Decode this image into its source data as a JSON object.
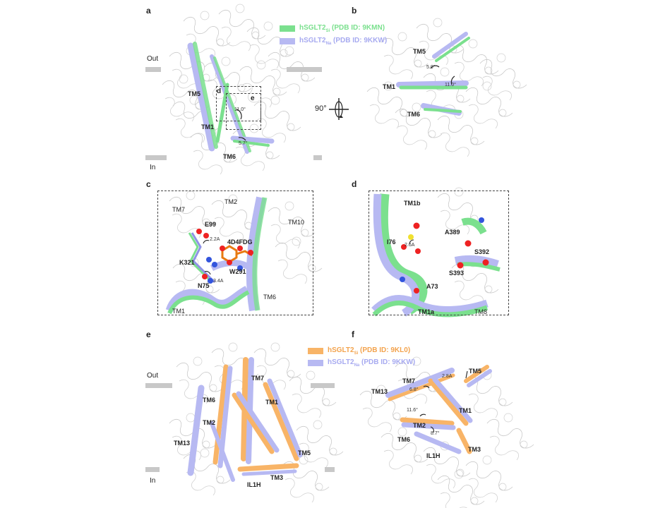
{
  "panels": {
    "a": {
      "letter": "a",
      "out_label": "Out",
      "in_label": "In",
      "legend": [
        {
          "prefix": "hSGLT2",
          "sub": "Si",
          "suffix": " (PDB ID: 9KMN)",
          "color": "#7be08e"
        },
        {
          "prefix": "hSGLT2",
          "sub": "Na",
          "suffix": " (PDB ID: 9KKW)",
          "color": "#b7b9f2"
        }
      ],
      "labels": [
        "TM5",
        "TM1",
        "TM6"
      ],
      "inset_labels": [
        "d",
        "e"
      ],
      "angles": [
        "11.0°",
        "5.7°"
      ]
    },
    "b": {
      "letter": "b",
      "labels": [
        "TM5",
        "TM1",
        "TM6"
      ],
      "angles": [
        "5.0°",
        "11.0°"
      ]
    },
    "rotation": "90°",
    "c": {
      "letter": "c",
      "labels": [
        "TM7",
        "TM2",
        "TM10",
        "E99",
        "4D4FDG",
        "K321",
        "W291",
        "N75",
        "TM6",
        "TM1"
      ],
      "distances": [
        "2.2A",
        "3.4A"
      ]
    },
    "d": {
      "letter": "d",
      "labels": [
        "TM1b",
        "A389",
        "I76",
        "S392",
        "S393",
        "A73",
        "TM1a",
        "TM8"
      ],
      "distances": [
        "2.6A"
      ]
    },
    "e": {
      "letter": "e",
      "out_label": "Out",
      "in_label": "In",
      "legend": [
        {
          "prefix": "hSGLT2",
          "sub": "Si",
          "suffix": " (PDB ID: 9KL0)",
          "color": "#f8b467"
        },
        {
          "prefix": "hSGLT2",
          "sub": "Na",
          "suffix": " (PDB ID: 9KKW)",
          "color": "#b7b9f2"
        }
      ],
      "labels": [
        "TM7",
        "TM6",
        "TM1",
        "TM2",
        "TM13",
        "TM5",
        "TM3",
        "IL1H"
      ]
    },
    "f": {
      "letter": "f",
      "labels": [
        "TM5",
        "TM7",
        "TM13",
        "TM1",
        "TM2",
        "TM6",
        "TM3",
        "IL1H"
      ],
      "angles": [
        "6.8°",
        "11.6°",
        "8.7°"
      ],
      "distances": [
        "2.8A"
      ]
    }
  },
  "colors": {
    "green": "#7be08e",
    "lavender": "#b7b9f2",
    "orange": "#f8b467",
    "membrane": "#c8c8c8"
  }
}
